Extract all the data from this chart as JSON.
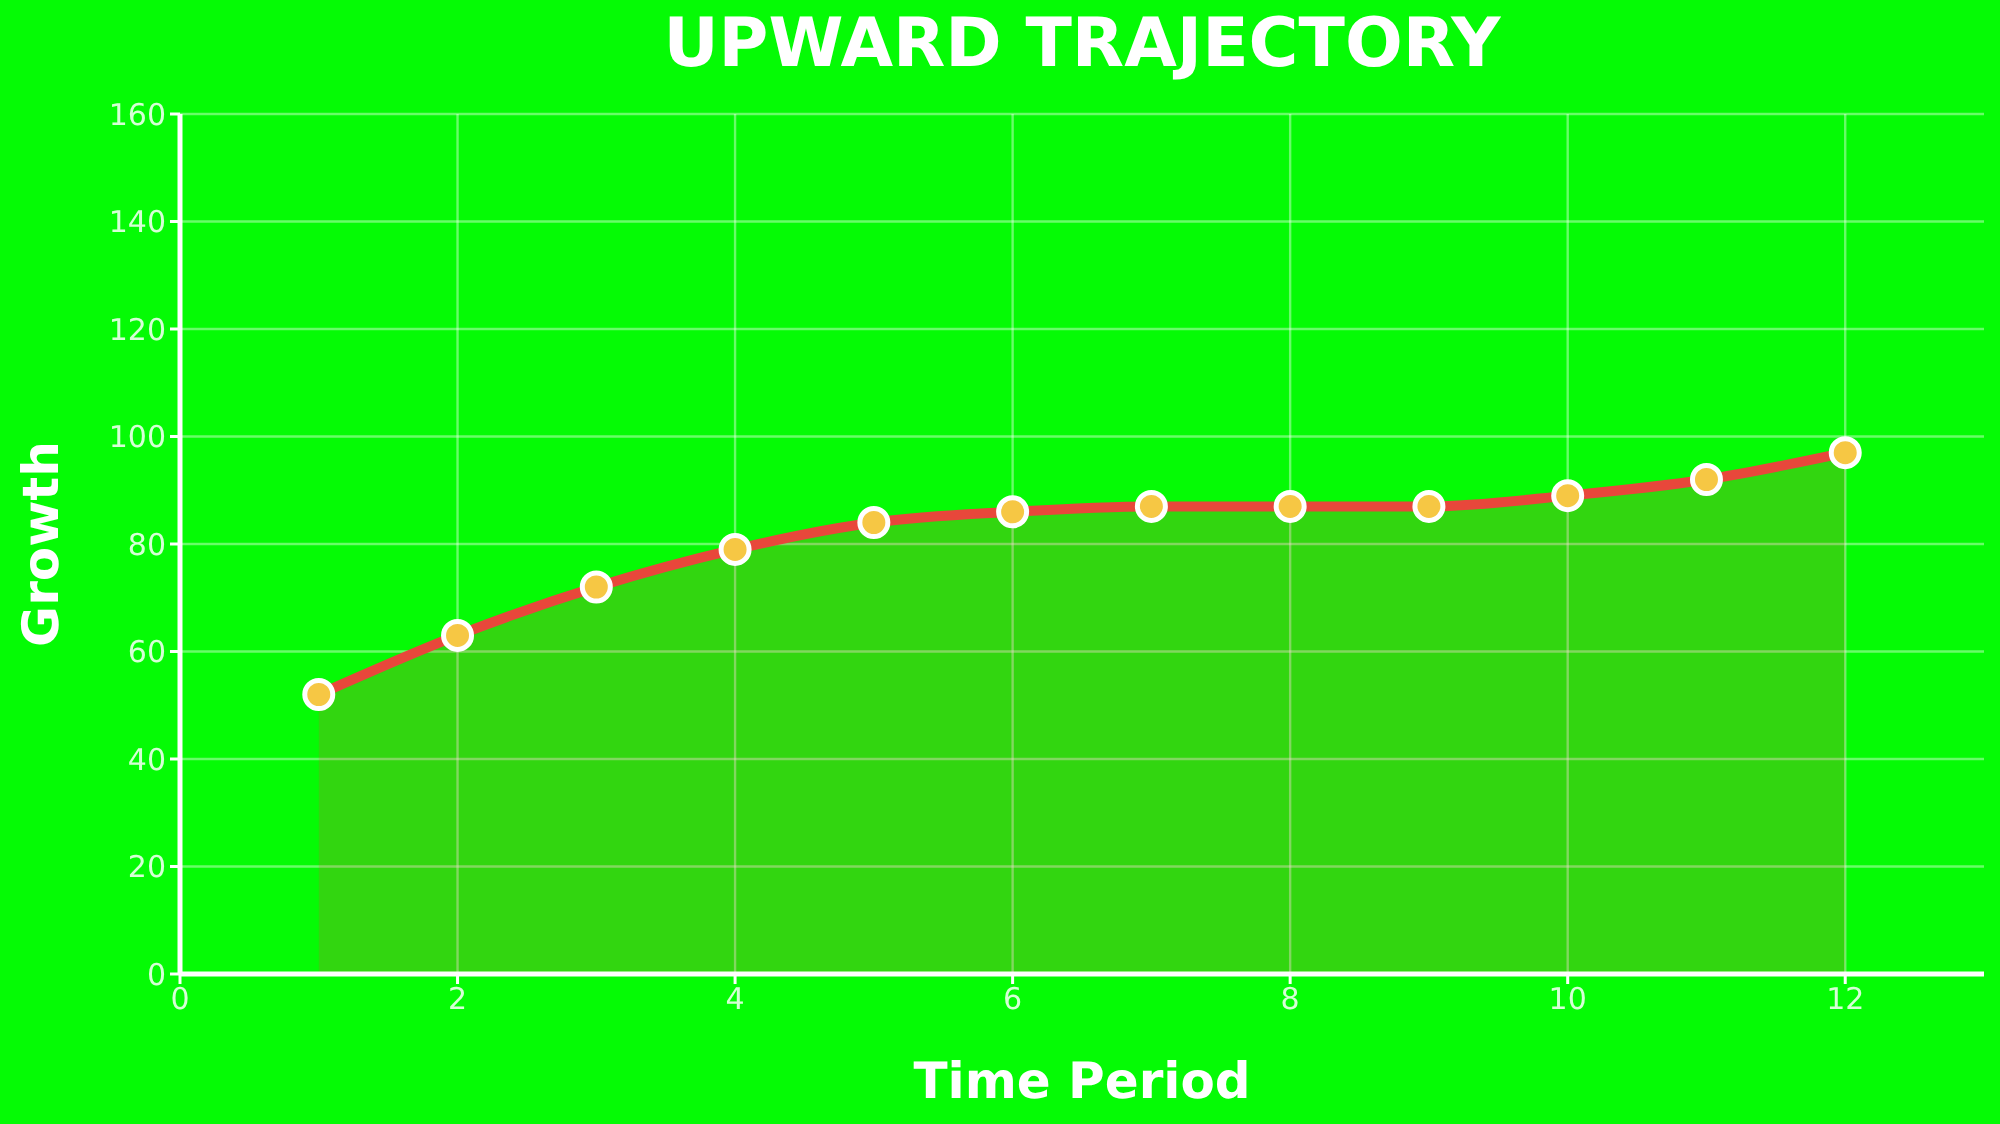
{
  "chart_data": {
    "type": "area",
    "title": "UPWARD TRAJECTORY",
    "xlabel": "Time Period",
    "ylabel": "Growth",
    "x": [
      1,
      2,
      3,
      4,
      5,
      6,
      7,
      8,
      9,
      10,
      11,
      12
    ],
    "series": [
      {
        "color": "#e8473b",
        "values": [
          52,
          63,
          72,
          79,
          84,
          86,
          87,
          87,
          87,
          89,
          92,
          97
        ]
      }
    ],
    "xlim": [
      0,
      13
    ],
    "xticks": [
      0,
      2,
      4,
      6,
      8,
      10,
      12
    ],
    "ylim": [
      0,
      160
    ],
    "yticks": [
      0,
      20,
      40,
      60,
      80,
      100,
      120,
      140,
      160
    ],
    "grid": true,
    "marker": "circle"
  }
}
